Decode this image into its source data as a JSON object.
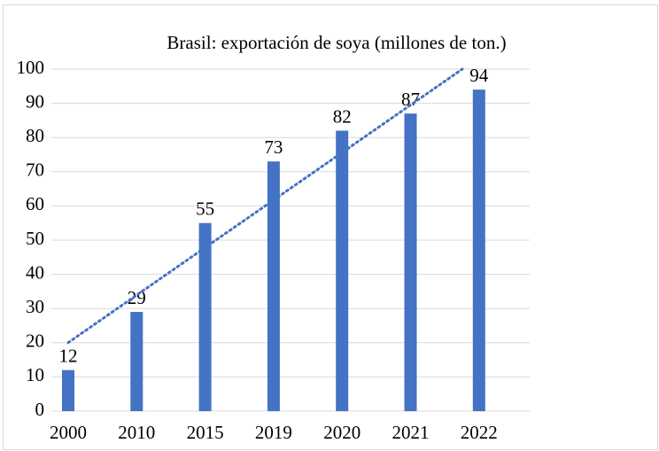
{
  "chart_data": {
    "type": "bar",
    "title": "Brasil: exportación de soya (millones de ton.)",
    "categories": [
      "2000",
      "2010",
      "2015",
      "2019",
      "2020",
      "2021",
      "2022"
    ],
    "values": [
      12,
      29,
      55,
      73,
      82,
      87,
      94
    ],
    "color": "#4472c4",
    "ylim": [
      0,
      100
    ],
    "yticks": [
      0,
      10,
      20,
      30,
      40,
      50,
      60,
      70,
      80,
      90,
      100
    ],
    "grid": true,
    "trendline": "linear"
  }
}
